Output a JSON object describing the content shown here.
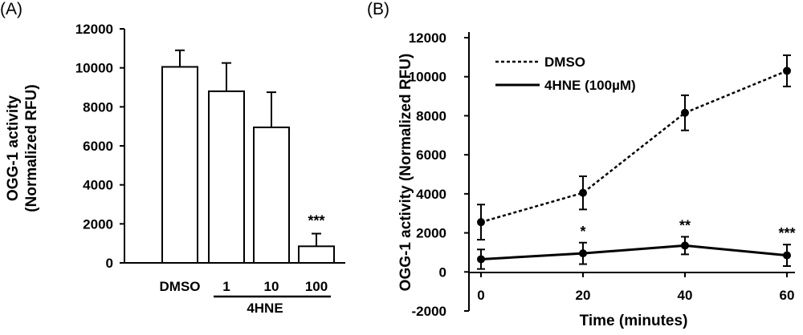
{
  "chart_data": [
    {
      "panel": "(A)",
      "type": "bar",
      "categories": [
        "DMSO",
        "1",
        "10",
        "100"
      ],
      "values": [
        10050,
        8800,
        6950,
        850
      ],
      "errors": [
        850,
        1450,
        1800,
        650
      ],
      "significance": [
        "",
        "",
        "",
        "***"
      ],
      "group_label": "4HNE",
      "ylabel_line1": "OGG-1 activity",
      "ylabel_line2": "(Normalized RFU)",
      "ylim": [
        0,
        12000
      ],
      "yticks": [
        0,
        2000,
        4000,
        6000,
        8000,
        10000,
        12000
      ],
      "grid": false
    },
    {
      "panel": "(B)",
      "type": "line",
      "x": [
        0,
        20,
        40,
        60
      ],
      "series": [
        {
          "name": "DMSO",
          "style": "dotted",
          "values": [
            2550,
            4050,
            8150,
            10300
          ],
          "errors": [
            900,
            850,
            900,
            800
          ]
        },
        {
          "name": "4HNE (100µM)",
          "style": "solid",
          "values": [
            650,
            950,
            1350,
            850
          ],
          "errors": [
            500,
            550,
            450,
            550
          ],
          "significance": [
            "",
            "*",
            "**",
            "***"
          ]
        }
      ],
      "xlabel": "Time (minutes)",
      "ylabel": "OGG-1 activity (Normalized RFU)",
      "xticks": [
        0,
        20,
        40,
        60
      ],
      "ylim": [
        -2000,
        12000
      ],
      "yticks": [
        -2000,
        0,
        2000,
        4000,
        6000,
        8000,
        10000,
        12000
      ],
      "legend_position": "top-left",
      "grid": false
    }
  ]
}
